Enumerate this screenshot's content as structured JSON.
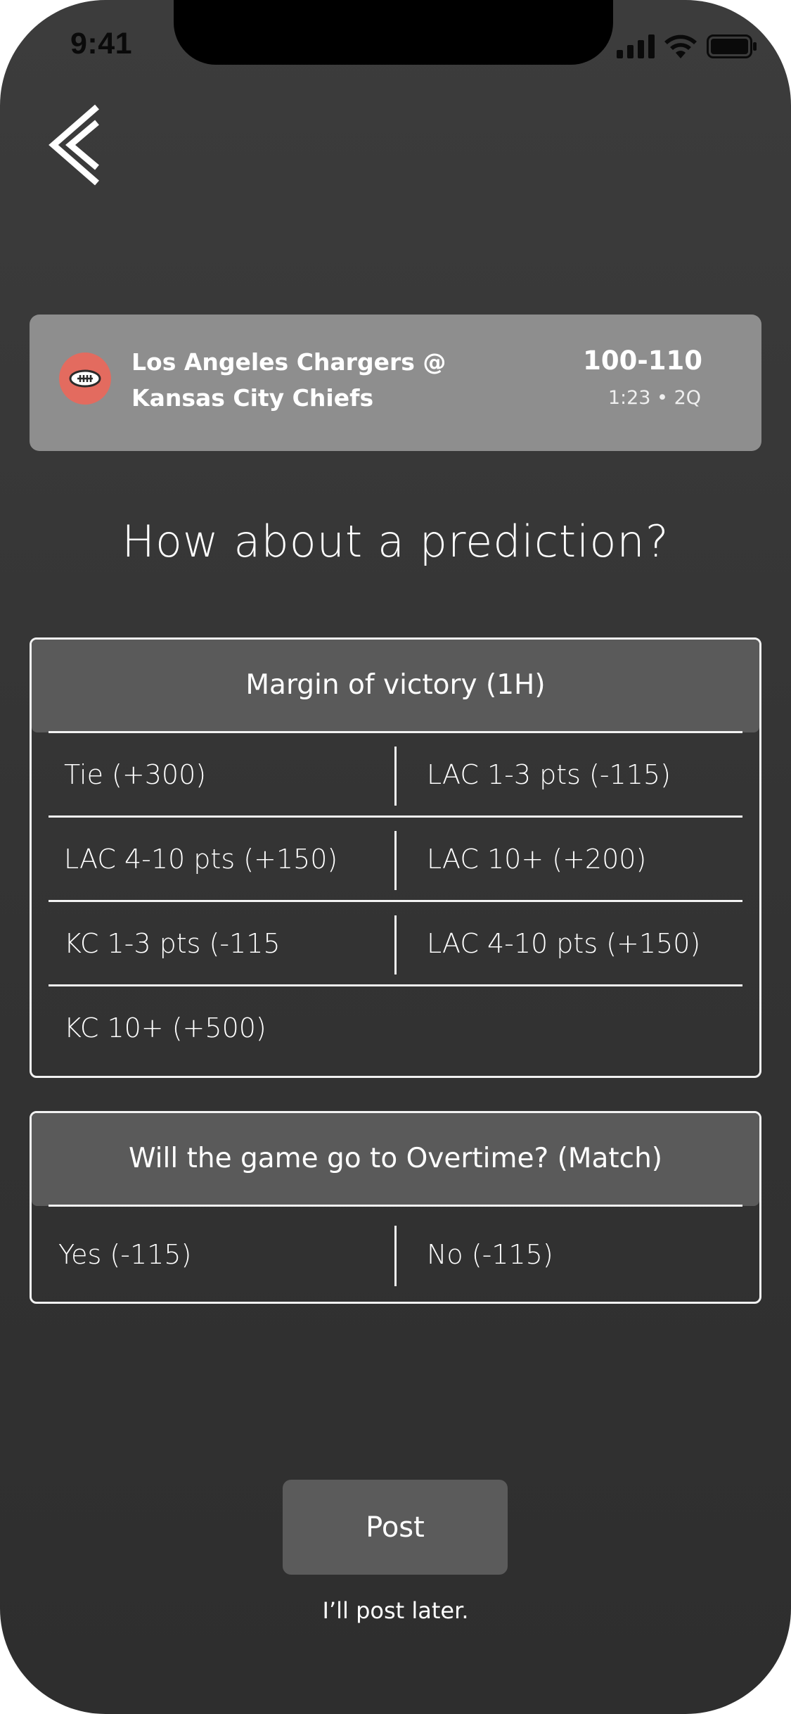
{
  "status_bar": {
    "time": "9:41"
  },
  "icons": {
    "back": "chevron-left-icon",
    "signal": "cellular-signal-icon",
    "wifi": "wifi-icon",
    "battery": "battery-icon",
    "team_logo": "football-icon"
  },
  "colors": {
    "background": "#363636",
    "card": "#8e8e8e",
    "logo": "#e36b5f",
    "header": "#5a5a5a",
    "button": "#5b5b5b"
  },
  "game": {
    "matchup_line1": "Los Angeles Chargers @",
    "matchup_line2": "Kansas City Chiefs",
    "score": "100-110",
    "clock": "1:23 • 2Q"
  },
  "heading": "How about a prediction?",
  "markets": [
    {
      "title": "Margin of victory (1H)",
      "options": [
        "Tie (+300)",
        "LAC 1-3 pts (-115)",
        "LAC 4-10 pts (+150)",
        "LAC 10+ (+200)",
        "KC 1-3 pts (-115",
        "LAC 4-10 pts (+150)",
        "KC 10+ (+500)"
      ]
    },
    {
      "title": "Will the game go to Overtime? (Match)",
      "options": [
        "Yes (-115)",
        "No (-115)"
      ]
    }
  ],
  "actions": {
    "post_label": "Post",
    "post_later_label": "I’ll post later."
  }
}
